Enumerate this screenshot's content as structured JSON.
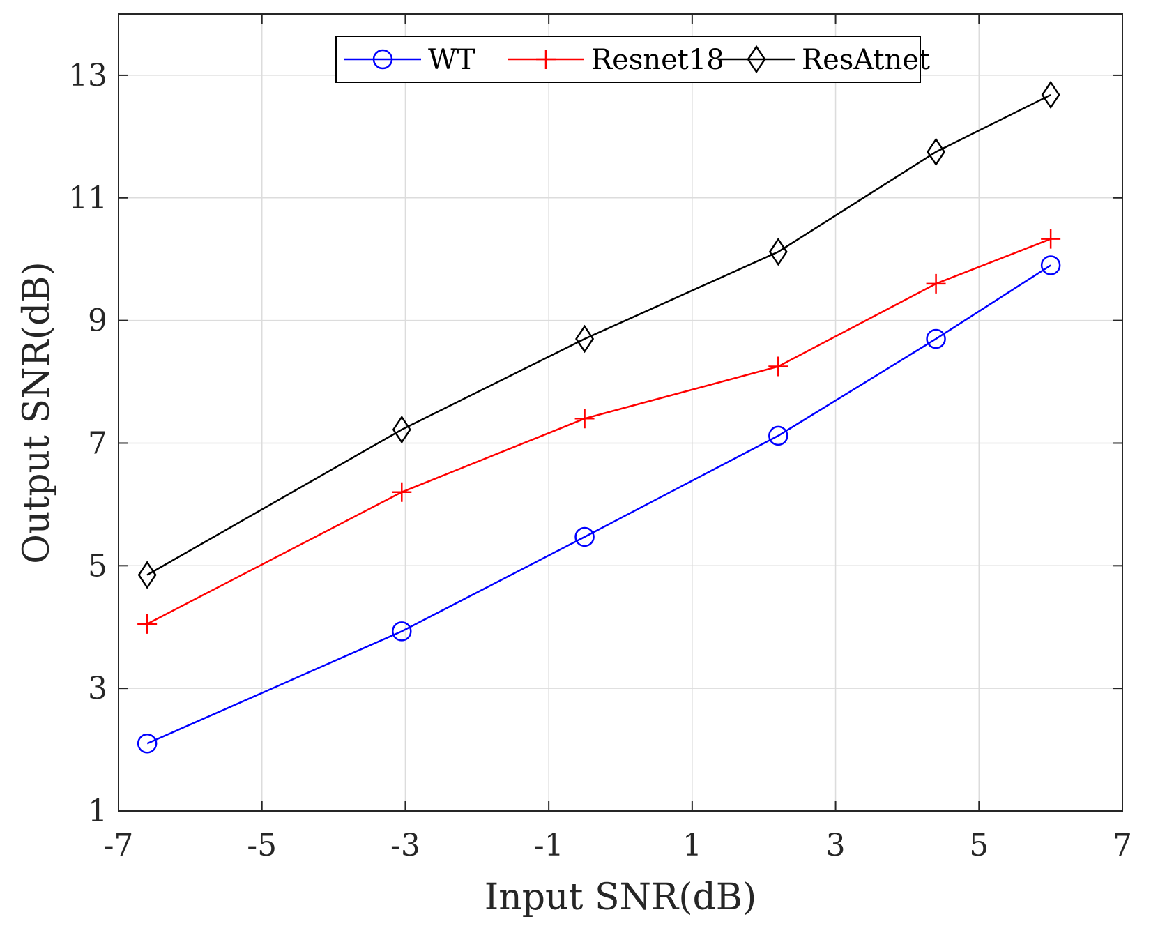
{
  "chart_data": {
    "type": "line",
    "title": "",
    "xlabel": "Input SNR(dB)",
    "ylabel": "Output SNR(dB)",
    "xlim": [
      -7,
      7
    ],
    "ylim": [
      1,
      14
    ],
    "xticks": [
      -7,
      -5,
      -3,
      -1,
      1,
      3,
      5,
      7
    ],
    "yticks": [
      1,
      3,
      5,
      7,
      9,
      11,
      13
    ],
    "xtick_labels": [
      "-7",
      "-5",
      "-3",
      "-1",
      "1",
      "3",
      "5",
      "7"
    ],
    "ytick_labels": [
      "1",
      "3",
      "5",
      "7",
      "9",
      "11",
      "13"
    ],
    "grid": true,
    "legend_position": "top-center",
    "series": [
      {
        "name": "WT",
        "color": "#0000ff",
        "marker": "circle",
        "x": [
          -6.6,
          -3.05,
          -0.5,
          2.2,
          4.4,
          6.0
        ],
        "y": [
          2.1,
          3.93,
          5.47,
          7.12,
          8.7,
          9.9
        ]
      },
      {
        "name": "Resnet18",
        "color": "#ff0000",
        "marker": "plus",
        "x": [
          -6.6,
          -3.05,
          -0.5,
          2.2,
          4.4,
          6.0
        ],
        "y": [
          4.05,
          6.2,
          7.4,
          8.25,
          9.6,
          10.33
        ]
      },
      {
        "name": "ResAtnet",
        "color": "#000000",
        "marker": "diamond",
        "x": [
          -6.6,
          -3.05,
          -0.5,
          2.2,
          4.4,
          6.0
        ],
        "y": [
          4.85,
          7.22,
          8.7,
          10.12,
          11.75,
          12.68
        ]
      }
    ]
  }
}
